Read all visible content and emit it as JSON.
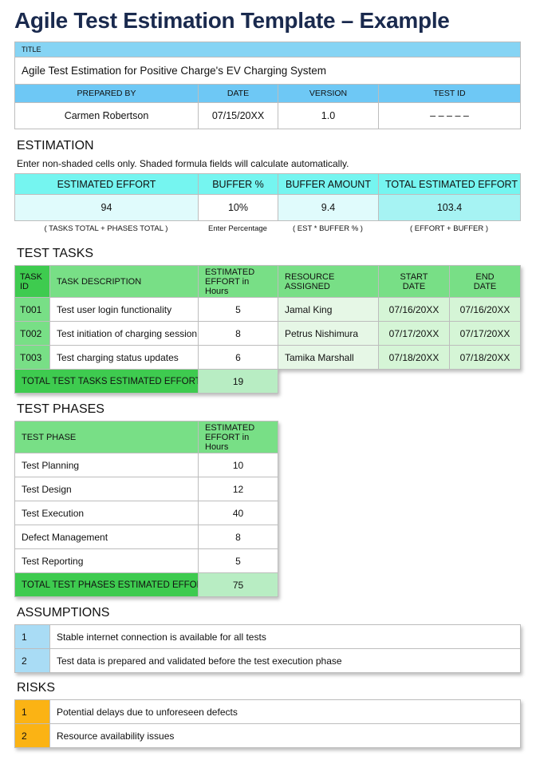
{
  "page_title": "Agile Test Estimation Template – Example",
  "header": {
    "title_label": "TITLE",
    "title_value": "Agile Test Estimation for Positive Charge's EV Charging System",
    "columns": [
      "PREPARED BY",
      "DATE",
      "VERSION",
      "TEST ID"
    ],
    "values": [
      "Carmen Robertson",
      "07/15/20XX",
      "1.0",
      "– – – – –"
    ]
  },
  "estimation": {
    "heading": "ESTIMATION",
    "instructions": "Enter non-shaded cells only. Shaded formula fields will calculate automatically.",
    "columns": [
      "ESTIMATED EFFORT",
      "BUFFER %",
      "BUFFER AMOUNT",
      "TOTAL ESTIMATED EFFORT"
    ],
    "values": [
      "94",
      "10%",
      "9.4",
      "103.4"
    ],
    "notes": [
      "( TASKS TOTAL +  PHASES TOTAL )",
      "Enter Percentage",
      "( EST * BUFFER % )",
      "( EFFORT + BUFFER )"
    ]
  },
  "tasks": {
    "heading": "TEST TASKS",
    "columns": [
      "TASK ID",
      "TASK DESCRIPTION",
      "ESTIMATED EFFORT in Hours",
      "RESOURCE ASSIGNED",
      "START DATE",
      "END DATE"
    ],
    "rows": [
      [
        "T001",
        "Test user login functionality",
        "5",
        "Jamal King",
        "07/16/20XX",
        "07/16/20XX"
      ],
      [
        "T002",
        "Test initiation of charging session",
        "8",
        "Petrus Nishimura",
        "07/17/20XX",
        "07/17/20XX"
      ],
      [
        "T003",
        "Test charging status updates",
        "6",
        "Tamika Marshall",
        "07/18/20XX",
        "07/18/20XX"
      ]
    ],
    "total_label": "TOTAL TEST TASKS ESTIMATED EFFORT",
    "total_value": "19"
  },
  "phases": {
    "heading": "TEST PHASES",
    "columns": [
      "TEST PHASE",
      "ESTIMATED EFFORT in Hours"
    ],
    "rows": [
      [
        "Test Planning",
        "10"
      ],
      [
        "Test Design",
        "12"
      ],
      [
        "Test Execution",
        "40"
      ],
      [
        "Defect Management",
        "8"
      ],
      [
        "Test Reporting",
        "5"
      ]
    ],
    "total_label": "TOTAL TEST PHASES ESTIMATED EFFORT",
    "total_value": "75"
  },
  "assumptions": {
    "heading": "ASSUMPTIONS",
    "rows": [
      [
        "1",
        "Stable internet connection is available for all tests"
      ],
      [
        "2",
        "Test data is prepared and validated before the test execution phase"
      ]
    ]
  },
  "risks": {
    "heading": "RISKS",
    "rows": [
      [
        "1",
        "Potential delays due to unforeseen defects"
      ],
      [
        "2",
        "Resource availability issues"
      ]
    ]
  },
  "colors": {
    "title_band": "#86d4f4",
    "header_blue": "#6ec8f5",
    "est_header": "#75f5f0",
    "green_header": "#78df86",
    "green_dark": "#3ecb4f",
    "risk": "#fbb314",
    "assumption": "#a9dcf5"
  }
}
